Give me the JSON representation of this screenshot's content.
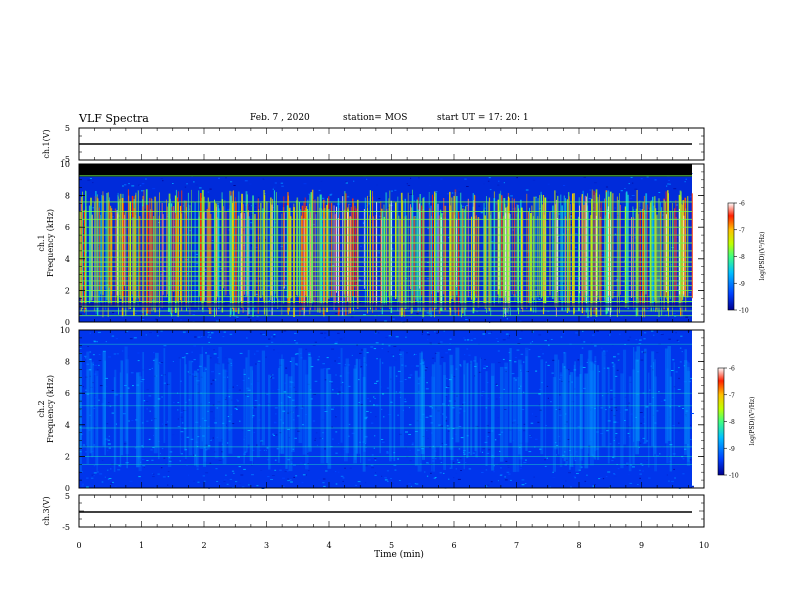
{
  "header": {
    "title": "VLF Spectra",
    "date": "Feb. 7 , 2020",
    "station": "station= MOS",
    "start": "start  UT =   17: 20: 1"
  },
  "colors": {
    "background": "#ffffff",
    "axis": "#000000",
    "noise_floor": "#1e28c8",
    "black_band": "#000000",
    "colorbar": [
      "#00008f",
      "#0040ff",
      "#00c0ff",
      "#40ff80",
      "#c0ff00",
      "#ffc000",
      "#ff2000",
      "#ffffff"
    ]
  },
  "chart_data": [
    {
      "type": "line",
      "panel": "ch1-waveform",
      "ylabel": "ch.1(V)",
      "ylim": [
        -5,
        5
      ],
      "yticks": [
        "5",
        "-5"
      ],
      "series": [
        {
          "x": [
            0,
            9.8
          ],
          "values": [
            0,
            0
          ]
        }
      ]
    },
    {
      "type": "heatmap",
      "panel": "ch1-spectrogram",
      "ylabel_line1": "ch.1",
      "ylabel_line2": "Frequency  (kHz)",
      "ylim": [
        0,
        10
      ],
      "yticks": [
        "0",
        "2",
        "4",
        "6",
        "8",
        "10"
      ],
      "xlim": [
        0,
        9.8
      ],
      "black_band_khz": [
        9.2,
        10
      ],
      "noise_level_log": -9.6,
      "tweek_band_khz": [
        0.3,
        8.4
      ],
      "horizontal_lines_khz": [
        0.4,
        0.7,
        1.0,
        1.3,
        1.6,
        2.0,
        2.3,
        2.6,
        2.9,
        3.2,
        3.5,
        3.8,
        4.1,
        4.5,
        5.0,
        5.5,
        6.0,
        6.5,
        7.0,
        7.6,
        9.25
      ],
      "colorbar": {
        "label": "log(PSD)(V²/Hz)",
        "range": [
          -10,
          -6
        ],
        "ticks": [
          "-6",
          "-7",
          "-8",
          "-9",
          "-10"
        ]
      }
    },
    {
      "type": "heatmap",
      "panel": "ch2-spectrogram",
      "ylabel_line1": "ch.2",
      "ylabel_line2": "Frequency  (kHz)",
      "ylim": [
        0,
        10
      ],
      "yticks": [
        "0",
        "2",
        "4",
        "6",
        "8",
        "10"
      ],
      "xlim": [
        0,
        9.8
      ],
      "noise_level_log": -9.5,
      "horizontal_lines_khz": [
        1.5,
        2.0,
        2.6,
        3.8,
        5.2,
        6.0,
        9.1
      ],
      "colorbar": {
        "label": "log(PSD)(V²/Hz)",
        "range": [
          -10,
          -6
        ],
        "ticks": [
          "-6",
          "-7",
          "-8",
          "-9",
          "-10"
        ]
      }
    },
    {
      "type": "line",
      "panel": "ch3-waveform",
      "ylabel": "ch.3(V)",
      "ylim": [
        -5,
        5
      ],
      "yticks": [
        "5",
        "-5"
      ],
      "xlabel": "Time  (min)",
      "xlim": [
        0,
        10
      ],
      "xticks": [
        "0",
        "1",
        "2",
        "3",
        "4",
        "5",
        "6",
        "7",
        "8",
        "9",
        "10"
      ],
      "series": [
        {
          "x": [
            0,
            9.8
          ],
          "values": [
            0,
            0
          ]
        }
      ]
    }
  ]
}
